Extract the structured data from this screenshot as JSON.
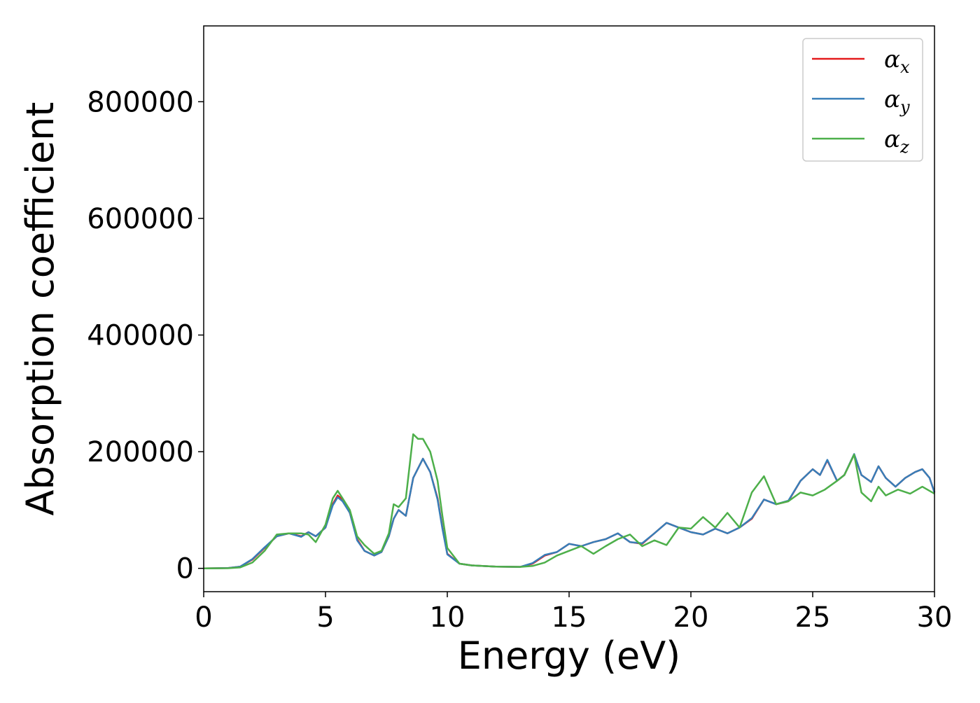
{
  "chart_data": {
    "type": "line",
    "title": "",
    "xlabel": "Energy (eV)",
    "ylabel": "Absorption coefficient",
    "xlim": [
      0,
      30
    ],
    "ylim": [
      -40000,
      930000
    ],
    "xticks": [
      0,
      5,
      10,
      15,
      20,
      25,
      30
    ],
    "yticks": [
      0,
      200000,
      400000,
      600000,
      800000
    ],
    "grid": false,
    "legend_position": "top-right",
    "series": [
      {
        "name": "αx",
        "legend_main": "α",
        "legend_sub": "x",
        "color": "#e41a1c",
        "x": [
          0,
          1,
          1.5,
          2,
          2.5,
          3,
          3.5,
          4,
          4.3,
          4.6,
          5,
          5.3,
          5.5,
          5.7,
          6,
          6.3,
          6.6,
          7,
          7.3,
          7.6,
          7.8,
          8,
          8.3,
          8.6,
          9,
          9.3,
          9.6,
          9.8,
          10,
          10.5,
          11,
          12,
          13,
          13.5,
          14,
          14.5,
          15,
          15.5,
          16,
          16.5,
          17,
          17.5,
          18,
          18.5,
          19,
          19.5,
          20,
          20.5,
          21,
          21.5,
          22,
          22.5,
          23,
          23.5,
          24,
          24.5,
          25,
          25.3,
          25.6,
          26,
          26.3,
          26.7,
          27,
          27.4,
          27.7,
          28,
          28.4,
          28.8,
          29.2,
          29.5,
          29.8,
          30
        ],
        "values": [
          0,
          500,
          3000,
          15000,
          35000,
          55000,
          60000,
          55000,
          62000,
          55000,
          70000,
          110000,
          125000,
          118000,
          95000,
          50000,
          30000,
          22000,
          28000,
          55000,
          85000,
          100000,
          90000,
          155000,
          188000,
          165000,
          120000,
          70000,
          25000,
          8000,
          5000,
          3000,
          2500,
          8000,
          22000,
          28000,
          42000,
          38000,
          45000,
          50000,
          60000,
          45000,
          42000,
          60000,
          78000,
          70000,
          62000,
          58000,
          68000,
          60000,
          70000,
          85000,
          118000,
          110000,
          115000,
          150000,
          170000,
          160000,
          185000,
          150000,
          160000,
          195000,
          160000,
          148000,
          175000,
          155000,
          140000,
          155000,
          165000,
          170000,
          155000,
          130000
        ]
      },
      {
        "name": "αy",
        "legend_main": "α",
        "legend_sub": "y",
        "color": "#377eb8",
        "x": [
          0,
          1,
          1.5,
          2,
          2.5,
          3,
          3.5,
          4,
          4.3,
          4.6,
          5,
          5.3,
          5.5,
          5.7,
          6,
          6.3,
          6.6,
          7,
          7.3,
          7.6,
          7.8,
          8,
          8.3,
          8.6,
          9,
          9.3,
          9.6,
          9.8,
          10,
          10.5,
          11,
          12,
          13,
          13.5,
          14,
          14.5,
          15,
          15.5,
          16,
          16.5,
          17,
          17.5,
          18,
          18.5,
          19,
          19.5,
          20,
          20.5,
          21,
          21.5,
          22,
          22.5,
          23,
          23.5,
          24,
          24.5,
          25,
          25.3,
          25.6,
          26,
          26.3,
          26.7,
          27,
          27.4,
          27.7,
          28,
          28.4,
          28.8,
          29.2,
          29.5,
          29.8,
          30
        ],
        "values": [
          0,
          500,
          3000,
          16000,
          36000,
          55000,
          60000,
          54000,
          62000,
          55000,
          70000,
          108000,
          122000,
          115000,
          95000,
          48000,
          30000,
          22000,
          28000,
          55000,
          85000,
          100000,
          90000,
          155000,
          188000,
          165000,
          118000,
          68000,
          24000,
          8000,
          5000,
          3000,
          2500,
          9000,
          23000,
          28000,
          42000,
          38000,
          45000,
          50000,
          60000,
          45000,
          43000,
          60000,
          78000,
          70000,
          62000,
          58000,
          68000,
          60000,
          70000,
          86000,
          118000,
          110000,
          116000,
          150000,
          170000,
          160000,
          186000,
          150000,
          160000,
          196000,
          160000,
          148000,
          175000,
          155000,
          140000,
          155000,
          165000,
          170000,
          155000,
          130000
        ]
      },
      {
        "name": "αz",
        "legend_main": "α",
        "legend_sub": "z",
        "color": "#4daf4a",
        "x": [
          0,
          1,
          1.5,
          2,
          2.5,
          3,
          3.5,
          4,
          4.3,
          4.6,
          5,
          5.3,
          5.5,
          5.7,
          6,
          6.3,
          6.6,
          7,
          7.3,
          7.6,
          7.8,
          8,
          8.3,
          8.6,
          8.8,
          9,
          9.3,
          9.6,
          9.8,
          10,
          10.5,
          11,
          12,
          13,
          13.5,
          14,
          14.5,
          15,
          15.5,
          16,
          16.5,
          17,
          17.5,
          18,
          18.5,
          19,
          19.5,
          20,
          20.5,
          21,
          21.5,
          22,
          22.5,
          23,
          23.5,
          24,
          24.5,
          25,
          25.5,
          26,
          26.3,
          26.7,
          27,
          27.4,
          27.7,
          28,
          28.5,
          29,
          29.5,
          30
        ],
        "values": [
          0,
          200,
          1500,
          10000,
          30000,
          58000,
          60000,
          60000,
          58000,
          45000,
          75000,
          120000,
          133000,
          120000,
          100000,
          55000,
          40000,
          25000,
          30000,
          60000,
          110000,
          105000,
          120000,
          230000,
          222000,
          222000,
          200000,
          150000,
          90000,
          35000,
          8000,
          5000,
          3000,
          2500,
          4000,
          10000,
          22000,
          30000,
          38000,
          25000,
          38000,
          50000,
          58000,
          38000,
          48000,
          40000,
          70000,
          68000,
          88000,
          70000,
          95000,
          70000,
          130000,
          158000,
          110000,
          115000,
          130000,
          125000,
          135000,
          150000,
          160000,
          195000,
          130000,
          115000,
          140000,
          125000,
          135000,
          128000,
          140000,
          128000
        ]
      }
    ]
  }
}
